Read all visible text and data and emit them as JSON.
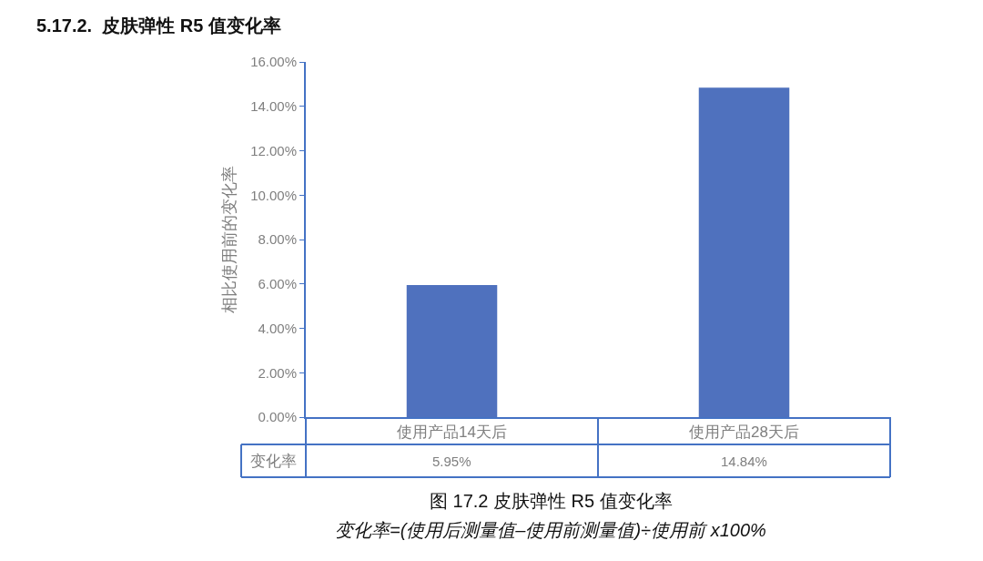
{
  "chart_data": {
    "type": "bar",
    "title": "5.17.2.  皮肤弹性 R5 值变化率",
    "ylabel": "相比使用前的变化率",
    "categories": [
      "使用产品14天后",
      "使用产品28天后"
    ],
    "values": [
      5.95,
      14.84
    ],
    "color": "#4f71be",
    "value_labels": [
      "5.95%",
      "14.84%"
    ],
    "ylim": [
      0,
      16
    ],
    "yticks": [
      {
        "value": 0,
        "label": "0.00%"
      },
      {
        "value": 2,
        "label": "2.00%"
      },
      {
        "value": 4,
        "label": "4.00%"
      },
      {
        "value": 6,
        "label": "6.00%"
      },
      {
        "value": 8,
        "label": "8.00%"
      },
      {
        "value": 10,
        "label": "10.00%"
      },
      {
        "value": 12,
        "label": "12.00%"
      },
      {
        "value": 14,
        "label": "14.00%"
      },
      {
        "value": 16,
        "label": "16.00%"
      }
    ],
    "annotations": [
      "变化率",
      "图 17.2 皮肤弹性 R5 值变化率",
      "变化率=(使用后测量值–使用前测量值)÷使用前 x100%"
    ]
  }
}
